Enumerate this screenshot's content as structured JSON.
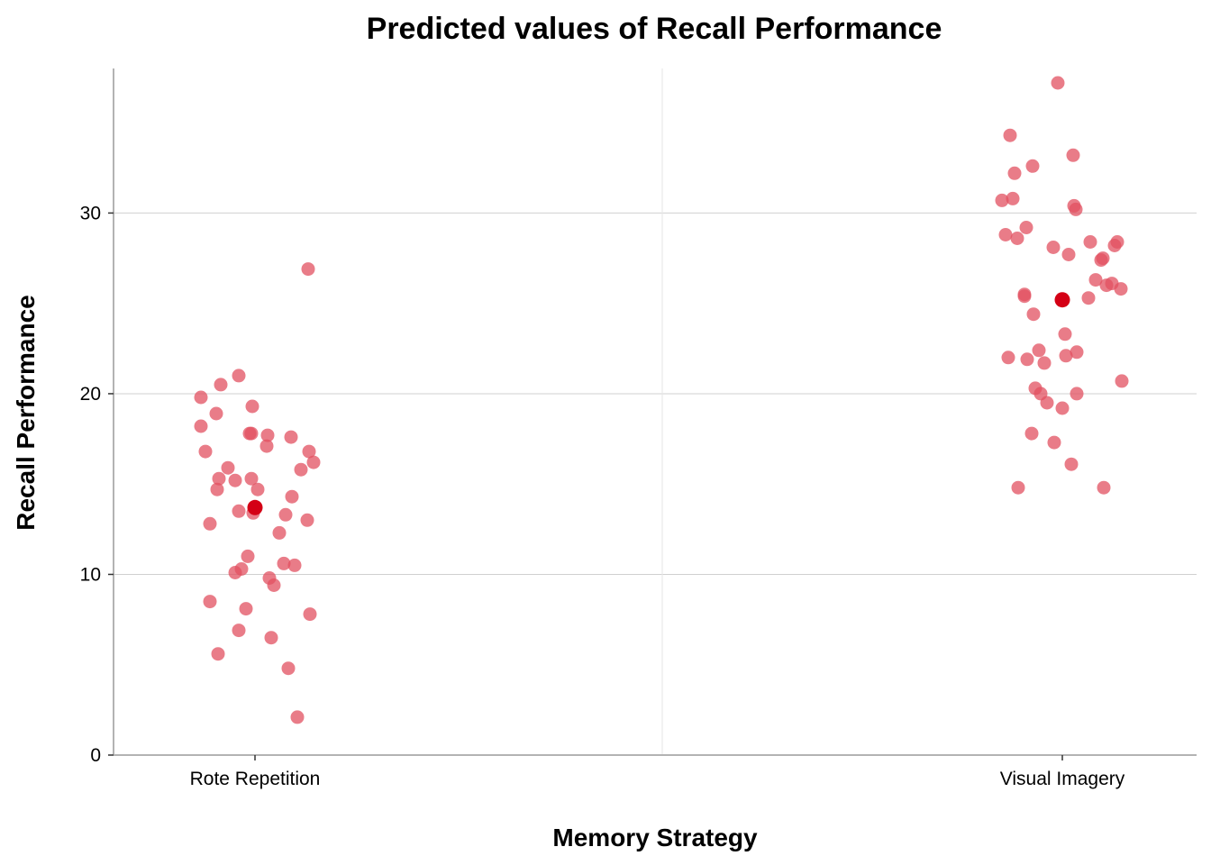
{
  "chart_data": {
    "type": "scatter",
    "title": "Predicted values of Recall Performance",
    "xlabel": "Memory Strategy",
    "ylabel": "Recall Performance",
    "categories": [
      "Rote Repetition",
      "Visual Imagery"
    ],
    "ylim": [
      0,
      38
    ],
    "yticks": [
      0,
      10,
      20,
      30
    ],
    "grid": true,
    "colors": {
      "points": "#e15060",
      "predicted": "#d40015"
    },
    "predicted": [
      {
        "x": "Rote Repetition",
        "y": 13.7
      },
      {
        "x": "Visual Imagery",
        "y": 25.2
      }
    ],
    "observed": [
      {
        "category": "Rote Repetition",
        "points": [
          {
            "dx": -0.06,
            "y": 18.2
          },
          {
            "dx": -0.06,
            "y": 19.8
          },
          {
            "dx": -0.055,
            "y": 16.8
          },
          {
            "dx": -0.05,
            "y": 12.8
          },
          {
            "dx": -0.05,
            "y": 8.5
          },
          {
            "dx": -0.043,
            "y": 18.9
          },
          {
            "dx": -0.042,
            "y": 14.7
          },
          {
            "dx": -0.041,
            "y": 5.6
          },
          {
            "dx": -0.04,
            "y": 15.3
          },
          {
            "dx": -0.038,
            "y": 20.5
          },
          {
            "dx": -0.03,
            "y": 15.9
          },
          {
            "dx": -0.022,
            "y": 15.2
          },
          {
            "dx": -0.022,
            "y": 10.1
          },
          {
            "dx": -0.018,
            "y": 21.0
          },
          {
            "dx": -0.018,
            "y": 13.5
          },
          {
            "dx": -0.018,
            "y": 6.9
          },
          {
            "dx": -0.015,
            "y": 10.3
          },
          {
            "dx": -0.01,
            "y": 8.1
          },
          {
            "dx": -0.008,
            "y": 11.0
          },
          {
            "dx": -0.006,
            "y": 17.8
          },
          {
            "dx": -0.004,
            "y": 17.8
          },
          {
            "dx": -0.004,
            "y": 15.3
          },
          {
            "dx": -0.003,
            "y": 19.3
          },
          {
            "dx": -0.002,
            "y": 13.4
          },
          {
            "dx": 0.003,
            "y": 14.7
          },
          {
            "dx": 0.013,
            "y": 17.1
          },
          {
            "dx": 0.014,
            "y": 17.7
          },
          {
            "dx": 0.016,
            "y": 9.8
          },
          {
            "dx": 0.018,
            "y": 6.5
          },
          {
            "dx": 0.021,
            "y": 9.4
          },
          {
            "dx": 0.027,
            "y": 12.3
          },
          {
            "dx": 0.032,
            "y": 10.6
          },
          {
            "dx": 0.034,
            "y": 13.3
          },
          {
            "dx": 0.037,
            "y": 4.8
          },
          {
            "dx": 0.04,
            "y": 17.6
          },
          {
            "dx": 0.041,
            "y": 14.3
          },
          {
            "dx": 0.044,
            "y": 10.5
          },
          {
            "dx": 0.047,
            "y": 2.1
          },
          {
            "dx": 0.051,
            "y": 15.8
          },
          {
            "dx": 0.058,
            "y": 13.0
          },
          {
            "dx": 0.059,
            "y": 26.9
          },
          {
            "dx": 0.06,
            "y": 16.8
          },
          {
            "dx": 0.061,
            "y": 7.8
          },
          {
            "dx": 0.065,
            "y": 16.2
          }
        ]
      },
      {
        "category": "Visual Imagery",
        "points": [
          {
            "dx": -0.067,
            "y": 30.7
          },
          {
            "dx": -0.063,
            "y": 28.8
          },
          {
            "dx": -0.06,
            "y": 22.0
          },
          {
            "dx": -0.058,
            "y": 34.3
          },
          {
            "dx": -0.055,
            "y": 30.8
          },
          {
            "dx": -0.053,
            "y": 32.2
          },
          {
            "dx": -0.05,
            "y": 28.6
          },
          {
            "dx": -0.049,
            "y": 14.8
          },
          {
            "dx": -0.042,
            "y": 25.5
          },
          {
            "dx": -0.042,
            "y": 25.4
          },
          {
            "dx": -0.04,
            "y": 29.2
          },
          {
            "dx": -0.039,
            "y": 21.9
          },
          {
            "dx": -0.034,
            "y": 17.8
          },
          {
            "dx": -0.033,
            "y": 32.6
          },
          {
            "dx": -0.032,
            "y": 24.4
          },
          {
            "dx": -0.03,
            "y": 20.3
          },
          {
            "dx": -0.026,
            "y": 22.4
          },
          {
            "dx": -0.024,
            "y": 20.0
          },
          {
            "dx": -0.02,
            "y": 21.7
          },
          {
            "dx": -0.017,
            "y": 19.5
          },
          {
            "dx": -0.01,
            "y": 28.1
          },
          {
            "dx": -0.009,
            "y": 17.3
          },
          {
            "dx": -0.005,
            "y": 37.2
          },
          {
            "dx": 0.0,
            "y": 19.2
          },
          {
            "dx": 0.003,
            "y": 23.3
          },
          {
            "dx": 0.004,
            "y": 22.1
          },
          {
            "dx": 0.007,
            "y": 27.7
          },
          {
            "dx": 0.01,
            "y": 16.1
          },
          {
            "dx": 0.012,
            "y": 33.2
          },
          {
            "dx": 0.013,
            "y": 30.4
          },
          {
            "dx": 0.015,
            "y": 30.2
          },
          {
            "dx": 0.016,
            "y": 22.3
          },
          {
            "dx": 0.016,
            "y": 20.0
          },
          {
            "dx": 0.029,
            "y": 25.3
          },
          {
            "dx": 0.031,
            "y": 28.4
          },
          {
            "dx": 0.037,
            "y": 26.3
          },
          {
            "dx": 0.043,
            "y": 27.4
          },
          {
            "dx": 0.045,
            "y": 27.5
          },
          {
            "dx": 0.046,
            "y": 14.8
          },
          {
            "dx": 0.049,
            "y": 26.0
          },
          {
            "dx": 0.055,
            "y": 26.1
          },
          {
            "dx": 0.058,
            "y": 28.2
          },
          {
            "dx": 0.061,
            "y": 28.4
          },
          {
            "dx": 0.065,
            "y": 25.8
          },
          {
            "dx": 0.066,
            "y": 20.7
          }
        ]
      }
    ]
  }
}
